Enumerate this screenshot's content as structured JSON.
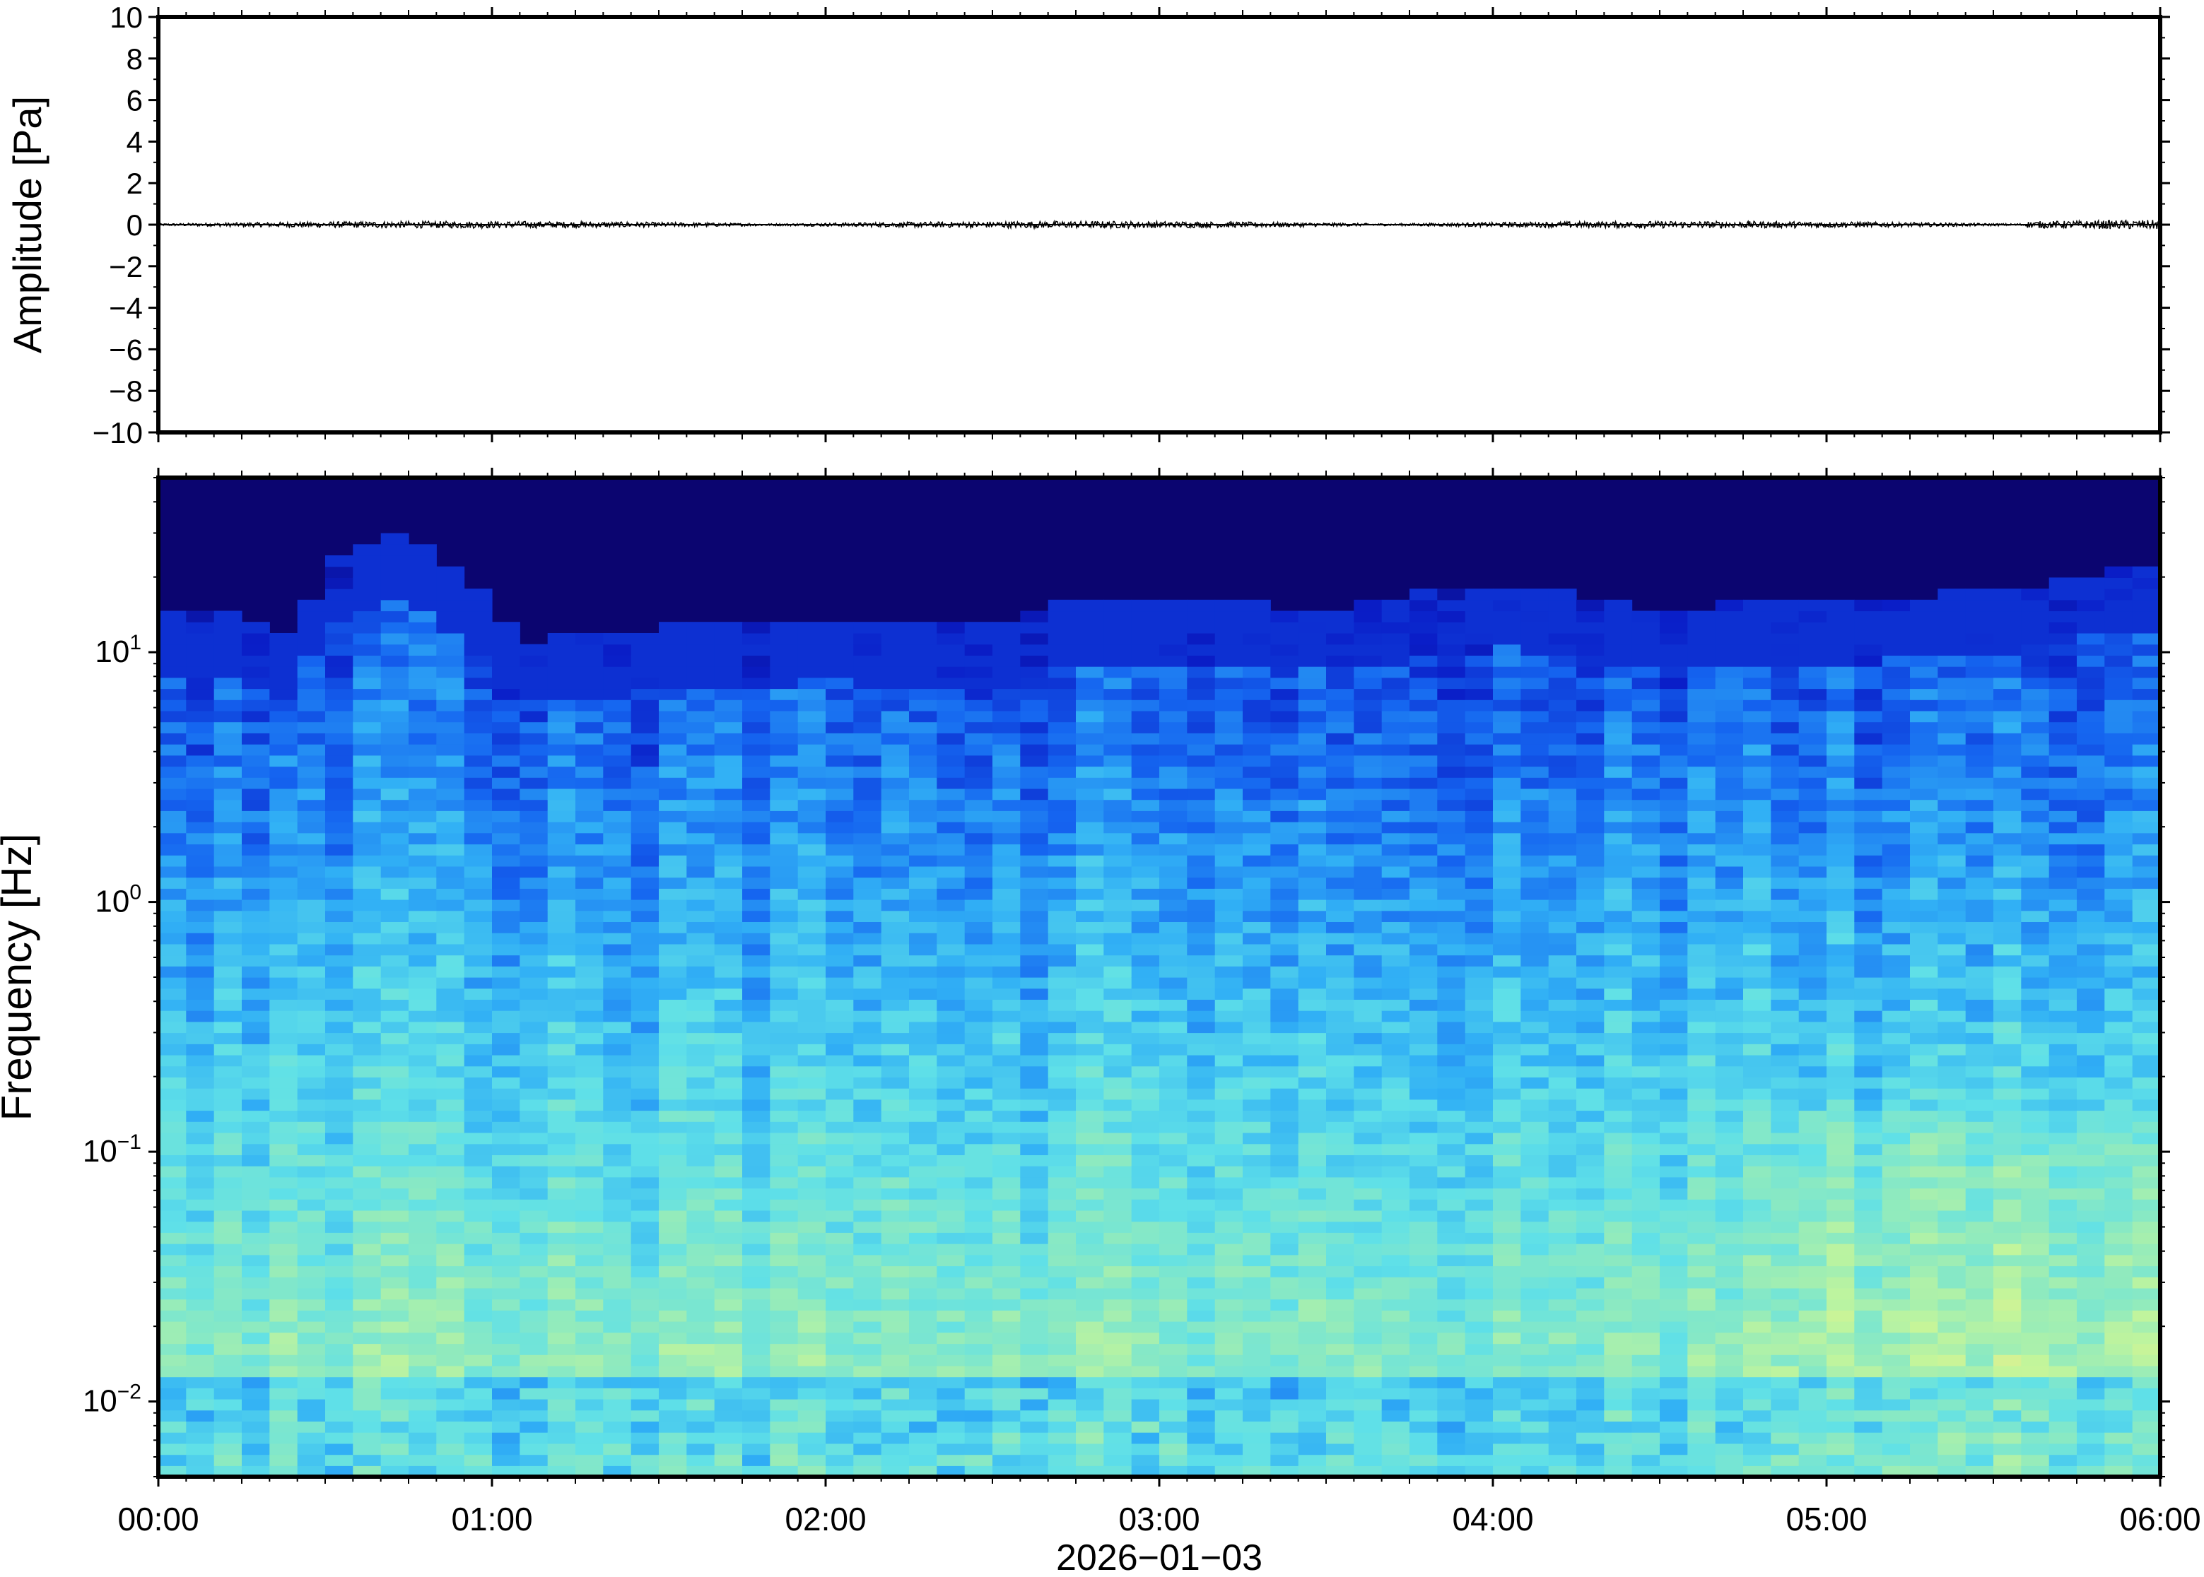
{
  "chart_data": [
    {
      "type": "line",
      "ylabel": "Amplitude [Pa]",
      "ylim": [
        -10,
        10
      ],
      "y_ticks": [
        "10",
        "8",
        "6",
        "4",
        "2",
        "0",
        "−2",
        "−4",
        "−6",
        "−8",
        "−10"
      ],
      "y_tick_values": [
        10,
        8,
        6,
        4,
        2,
        0,
        -2,
        -4,
        -6,
        -8,
        -10
      ],
      "series": [
        {
          "description_free": true,
          "trace_amplitude_max": 0.3,
          "baseline": 0
        }
      ],
      "x_hours_range": [
        0,
        6
      ]
    },
    {
      "type": "heatmap",
      "ylabel": "Frequency [Hz]",
      "yscale": "log",
      "ylim": [
        0.005,
        50
      ],
      "y_tick_values": [
        0.01,
        0.1,
        1,
        10
      ],
      "y_ticks": [
        {
          "base": "10",
          "exp": "−2"
        },
        {
          "base": "10",
          "exp": "−1"
        },
        {
          "base": "10",
          "exp": "0"
        },
        {
          "base": "10",
          "exp": "1"
        }
      ],
      "x_tick_labels": [
        "00:00",
        "01:00",
        "02:00",
        "03:00",
        "04:00",
        "05:00",
        "06:00"
      ],
      "x_hours": [
        0,
        1,
        2,
        3,
        4,
        5,
        6
      ],
      "xlabel": "2026−01−03",
      "colormap": [
        "#0b0570",
        "#0a1ec8",
        "#1565f0",
        "#31b0f5",
        "#5fe0e8",
        "#8eeabf",
        "#c4f59a",
        "#f3ec88"
      ],
      "noise_top_hz_by_hour": [
        [
          0.0,
          11
        ],
        [
          0.25,
          12
        ],
        [
          0.4,
          9
        ],
        [
          0.5,
          18
        ],
        [
          0.75,
          24
        ],
        [
          0.95,
          14
        ],
        [
          1.1,
          9
        ],
        [
          1.5,
          10
        ],
        [
          2.0,
          11
        ],
        [
          2.5,
          10
        ],
        [
          2.75,
          13
        ],
        [
          3.0,
          13
        ],
        [
          3.5,
          12
        ],
        [
          4.0,
          15
        ],
        [
          4.5,
          12
        ],
        [
          5.0,
          13
        ],
        [
          5.5,
          14
        ],
        [
          6.0,
          18
        ]
      ]
    }
  ]
}
